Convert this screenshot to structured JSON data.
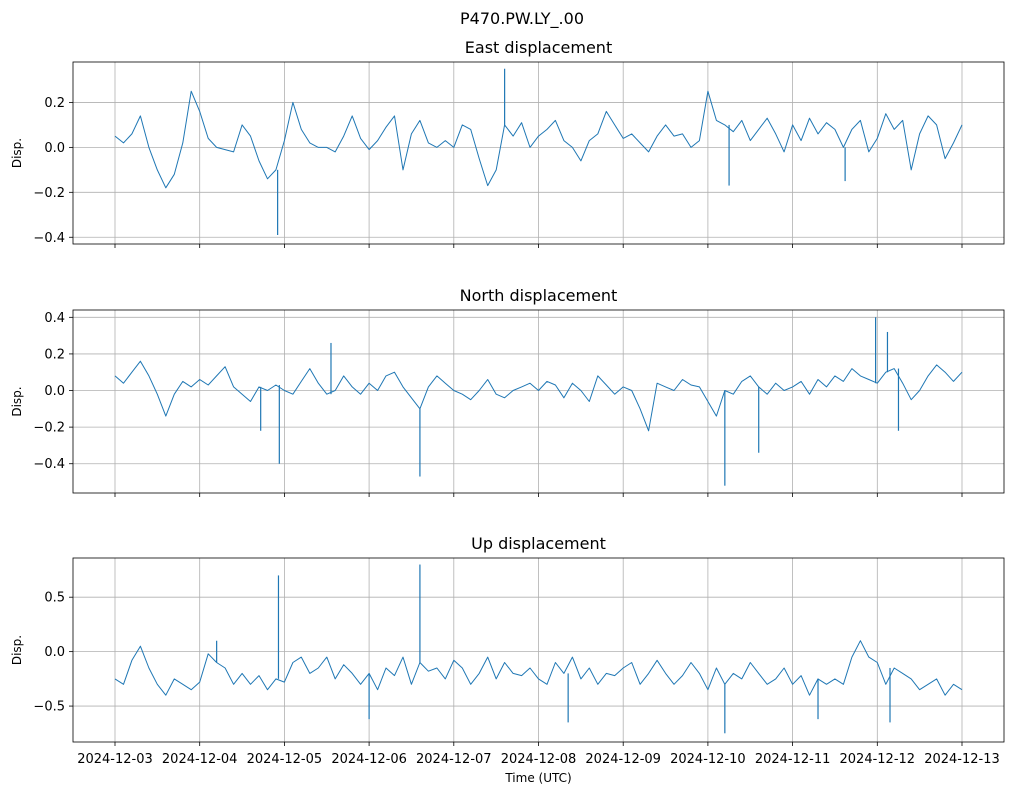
{
  "figure_title": "P470.PW.LY_.00",
  "colors": {
    "line": "#1f77b4",
    "grid": "#b0b0b0",
    "spine": "#000000"
  },
  "chart_data": [
    {
      "type": "line",
      "title": "East displacement",
      "ylabel": "Disp.",
      "xlabel": "",
      "grid": true,
      "xlim": [
        0,
        10
      ],
      "ylim": [
        -0.43,
        0.38
      ],
      "yticks": [
        0.2,
        0.0,
        -0.2,
        -0.4
      ],
      "ytick_labels": [
        "0.2",
        "0.0",
        "−0.2",
        "−0.4"
      ],
      "series": [
        {
          "name": "East",
          "x": [
            0,
            0.1,
            0.2,
            0.3,
            0.4,
            0.5,
            0.6,
            0.7,
            0.8,
            0.9,
            1.0,
            1.1,
            1.2,
            1.3,
            1.4,
            1.5,
            1.6,
            1.7,
            1.8,
            1.9,
            2.0,
            2.1,
            2.2,
            2.3,
            2.4,
            2.5,
            2.6,
            2.7,
            2.8,
            2.9,
            3.0,
            3.1,
            3.2,
            3.3,
            3.4,
            3.5,
            3.6,
            3.7,
            3.8,
            3.9,
            4.0,
            4.1,
            4.2,
            4.3,
            4.4,
            4.5,
            4.6,
            4.7,
            4.8,
            4.9,
            5.0,
            5.1,
            5.2,
            5.3,
            5.4,
            5.5,
            5.6,
            5.7,
            5.8,
            5.9,
            6.0,
            6.1,
            6.2,
            6.3,
            6.4,
            6.5,
            6.6,
            6.7,
            6.8,
            6.9,
            7.0,
            7.1,
            7.2,
            7.3,
            7.4,
            7.5,
            7.6,
            7.7,
            7.8,
            7.9,
            8.0,
            8.1,
            8.2,
            8.3,
            8.4,
            8.5,
            8.6,
            8.7,
            8.8,
            8.9,
            9.0,
            9.1,
            9.2,
            9.3,
            9.4,
            9.5,
            9.6,
            9.7,
            9.8,
            9.9,
            10.0
          ],
          "values": [
            0.05,
            0.02,
            0.06,
            0.14,
            0.0,
            -0.1,
            -0.18,
            -0.12,
            0.02,
            0.25,
            0.16,
            0.04,
            0.0,
            -0.01,
            -0.02,
            0.1,
            0.05,
            -0.06,
            -0.14,
            -0.1,
            0.03,
            0.2,
            0.08,
            0.02,
            0.0,
            0.0,
            -0.02,
            0.05,
            0.14,
            0.04,
            -0.01,
            0.03,
            0.09,
            0.14,
            -0.1,
            0.06,
            0.12,
            0.02,
            0.0,
            0.03,
            0.0,
            0.1,
            0.08,
            -0.05,
            -0.17,
            -0.1,
            0.1,
            0.05,
            0.11,
            0.0,
            0.05,
            0.08,
            0.12,
            0.03,
            0.0,
            -0.06,
            0.03,
            0.06,
            0.16,
            0.1,
            0.04,
            0.06,
            0.02,
            -0.02,
            0.05,
            0.1,
            0.05,
            0.06,
            0.0,
            0.03,
            0.25,
            0.12,
            0.1,
            0.07,
            0.12,
            0.03,
            0.08,
            0.13,
            0.06,
            -0.02,
            0.1,
            0.03,
            0.13,
            0.06,
            0.11,
            0.08,
            0.0,
            0.08,
            0.12,
            -0.02,
            0.04,
            0.15,
            0.08,
            0.12,
            -0.1,
            0.06,
            0.14,
            0.1,
            -0.05,
            0.02,
            0.1
          ]
        }
      ],
      "spikes": [
        {
          "x": 1.92,
          "value": -0.39
        },
        {
          "x": 4.6,
          "value": 0.35
        },
        {
          "x": 7.25,
          "value": -0.17
        },
        {
          "x": 8.62,
          "value": -0.15
        }
      ]
    },
    {
      "type": "line",
      "title": "North displacement",
      "ylabel": "Disp.",
      "xlabel": "",
      "grid": true,
      "xlim": [
        0,
        10
      ],
      "ylim": [
        -0.56,
        0.44
      ],
      "yticks": [
        0.4,
        0.2,
        0.0,
        -0.2,
        -0.4
      ],
      "ytick_labels": [
        "0.4",
        "0.2",
        "0.0",
        "−0.2",
        "−0.4"
      ],
      "series": [
        {
          "name": "North",
          "x": [
            0,
            0.1,
            0.2,
            0.3,
            0.4,
            0.5,
            0.6,
            0.7,
            0.8,
            0.9,
            1.0,
            1.1,
            1.2,
            1.3,
            1.4,
            1.5,
            1.6,
            1.7,
            1.8,
            1.9,
            2.0,
            2.1,
            2.2,
            2.3,
            2.4,
            2.5,
            2.6,
            2.7,
            2.8,
            2.9,
            3.0,
            3.1,
            3.2,
            3.3,
            3.4,
            3.5,
            3.6,
            3.7,
            3.8,
            3.9,
            4.0,
            4.1,
            4.2,
            4.3,
            4.4,
            4.5,
            4.6,
            4.7,
            4.8,
            4.9,
            5.0,
            5.1,
            5.2,
            5.3,
            5.4,
            5.5,
            5.6,
            5.7,
            5.8,
            5.9,
            6.0,
            6.1,
            6.2,
            6.3,
            6.4,
            6.5,
            6.6,
            6.7,
            6.8,
            6.9,
            7.0,
            7.1,
            7.2,
            7.3,
            7.4,
            7.5,
            7.6,
            7.7,
            7.8,
            7.9,
            8.0,
            8.1,
            8.2,
            8.3,
            8.4,
            8.5,
            8.6,
            8.7,
            8.8,
            8.9,
            9.0,
            9.1,
            9.2,
            9.3,
            9.4,
            9.5,
            9.6,
            9.7,
            9.8,
            9.9,
            10.0
          ],
          "values": [
            0.08,
            0.04,
            0.1,
            0.16,
            0.08,
            -0.02,
            -0.14,
            -0.02,
            0.05,
            0.02,
            0.06,
            0.03,
            0.08,
            0.13,
            0.02,
            -0.02,
            -0.06,
            0.02,
            0.0,
            0.03,
            0.0,
            -0.02,
            0.05,
            0.12,
            0.04,
            -0.02,
            0.0,
            0.08,
            0.02,
            -0.02,
            0.04,
            0.0,
            0.08,
            0.1,
            0.02,
            -0.04,
            -0.1,
            0.02,
            0.08,
            0.04,
            0.0,
            -0.02,
            -0.05,
            0.0,
            0.06,
            -0.02,
            -0.04,
            0.0,
            0.02,
            0.04,
            0.0,
            0.05,
            0.03,
            -0.04,
            0.04,
            0.0,
            -0.06,
            0.08,
            0.03,
            -0.02,
            0.02,
            0.0,
            -0.1,
            -0.22,
            0.04,
            0.02,
            0.0,
            0.06,
            0.03,
            0.02,
            -0.06,
            -0.14,
            0.0,
            -0.02,
            0.05,
            0.08,
            0.02,
            -0.02,
            0.04,
            0.0,
            0.02,
            0.05,
            -0.02,
            0.06,
            0.02,
            0.08,
            0.05,
            0.12,
            0.08,
            0.06,
            0.04,
            0.1,
            0.12,
            0.04,
            -0.05,
            0.0,
            0.08,
            0.14,
            0.1,
            0.05,
            0.1
          ]
        }
      ],
      "spikes": [
        {
          "x": 1.72,
          "value": -0.22
        },
        {
          "x": 1.94,
          "value": -0.4
        },
        {
          "x": 2.55,
          "value": 0.26
        },
        {
          "x": 3.6,
          "value": -0.47
        },
        {
          "x": 7.2,
          "value": -0.52
        },
        {
          "x": 7.6,
          "value": -0.34
        },
        {
          "x": 8.98,
          "value": 0.4
        },
        {
          "x": 9.12,
          "value": 0.32
        },
        {
          "x": 9.25,
          "value": -0.22
        }
      ]
    },
    {
      "type": "line",
      "title": "Up displacement",
      "ylabel": "Disp.",
      "xlabel": "Time (UTC)",
      "grid": true,
      "xlim": [
        0,
        10
      ],
      "ylim": [
        -0.83,
        0.86
      ],
      "yticks": [
        0.5,
        0.0,
        -0.5
      ],
      "ytick_labels": [
        "0.5",
        "0.0",
        "−0.5"
      ],
      "xtick_labels": [
        "2024-12-03",
        "2024-12-04",
        "2024-12-05",
        "2024-12-06",
        "2024-12-07",
        "2024-12-08",
        "2024-12-09",
        "2024-12-10",
        "2024-12-11",
        "2024-12-12",
        "2024-12-13"
      ],
      "series": [
        {
          "name": "Up",
          "x": [
            0,
            0.1,
            0.2,
            0.3,
            0.4,
            0.5,
            0.6,
            0.7,
            0.8,
            0.9,
            1.0,
            1.1,
            1.2,
            1.3,
            1.4,
            1.5,
            1.6,
            1.7,
            1.8,
            1.9,
            2.0,
            2.1,
            2.2,
            2.3,
            2.4,
            2.5,
            2.6,
            2.7,
            2.8,
            2.9,
            3.0,
            3.1,
            3.2,
            3.3,
            3.4,
            3.5,
            3.6,
            3.7,
            3.8,
            3.9,
            4.0,
            4.1,
            4.2,
            4.3,
            4.4,
            4.5,
            4.6,
            4.7,
            4.8,
            4.9,
            5.0,
            5.1,
            5.2,
            5.3,
            5.4,
            5.5,
            5.6,
            5.7,
            5.8,
            5.9,
            6.0,
            6.1,
            6.2,
            6.3,
            6.4,
            6.5,
            6.6,
            6.7,
            6.8,
            6.9,
            7.0,
            7.1,
            7.2,
            7.3,
            7.4,
            7.5,
            7.6,
            7.7,
            7.8,
            7.9,
            8.0,
            8.1,
            8.2,
            8.3,
            8.4,
            8.5,
            8.6,
            8.7,
            8.8,
            8.9,
            9.0,
            9.1,
            9.2,
            9.3,
            9.4,
            9.5,
            9.6,
            9.7,
            9.8,
            9.9,
            10.0
          ],
          "values": [
            -0.25,
            -0.3,
            -0.08,
            0.05,
            -0.15,
            -0.3,
            -0.4,
            -0.25,
            -0.3,
            -0.35,
            -0.28,
            -0.02,
            -0.1,
            -0.15,
            -0.3,
            -0.2,
            -0.3,
            -0.22,
            -0.35,
            -0.25,
            -0.28,
            -0.1,
            -0.05,
            -0.2,
            -0.15,
            -0.05,
            -0.25,
            -0.12,
            -0.2,
            -0.3,
            -0.2,
            -0.35,
            -0.15,
            -0.22,
            -0.05,
            -0.3,
            -0.1,
            -0.18,
            -0.15,
            -0.25,
            -0.08,
            -0.15,
            -0.3,
            -0.2,
            -0.05,
            -0.25,
            -0.1,
            -0.2,
            -0.22,
            -0.15,
            -0.25,
            -0.3,
            -0.1,
            -0.2,
            -0.05,
            -0.25,
            -0.15,
            -0.3,
            -0.2,
            -0.22,
            -0.15,
            -0.1,
            -0.3,
            -0.2,
            -0.08,
            -0.2,
            -0.3,
            -0.22,
            -0.1,
            -0.2,
            -0.35,
            -0.15,
            -0.3,
            -0.2,
            -0.25,
            -0.1,
            -0.2,
            -0.3,
            -0.25,
            -0.15,
            -0.3,
            -0.22,
            -0.4,
            -0.25,
            -0.3,
            -0.25,
            -0.3,
            -0.05,
            0.1,
            -0.05,
            -0.1,
            -0.3,
            -0.15,
            -0.2,
            -0.25,
            -0.35,
            -0.3,
            -0.25,
            -0.4,
            -0.3,
            -0.35
          ]
        }
      ],
      "spikes": [
        {
          "x": 1.93,
          "value": 0.7
        },
        {
          "x": 3.6,
          "value": 0.8
        },
        {
          "x": 1.2,
          "value": 0.1
        },
        {
          "x": 3.0,
          "value": -0.62
        },
        {
          "x": 5.35,
          "value": -0.65
        },
        {
          "x": 7.2,
          "value": -0.75
        },
        {
          "x": 8.3,
          "value": -0.62
        },
        {
          "x": 9.15,
          "value": -0.65
        }
      ]
    }
  ]
}
